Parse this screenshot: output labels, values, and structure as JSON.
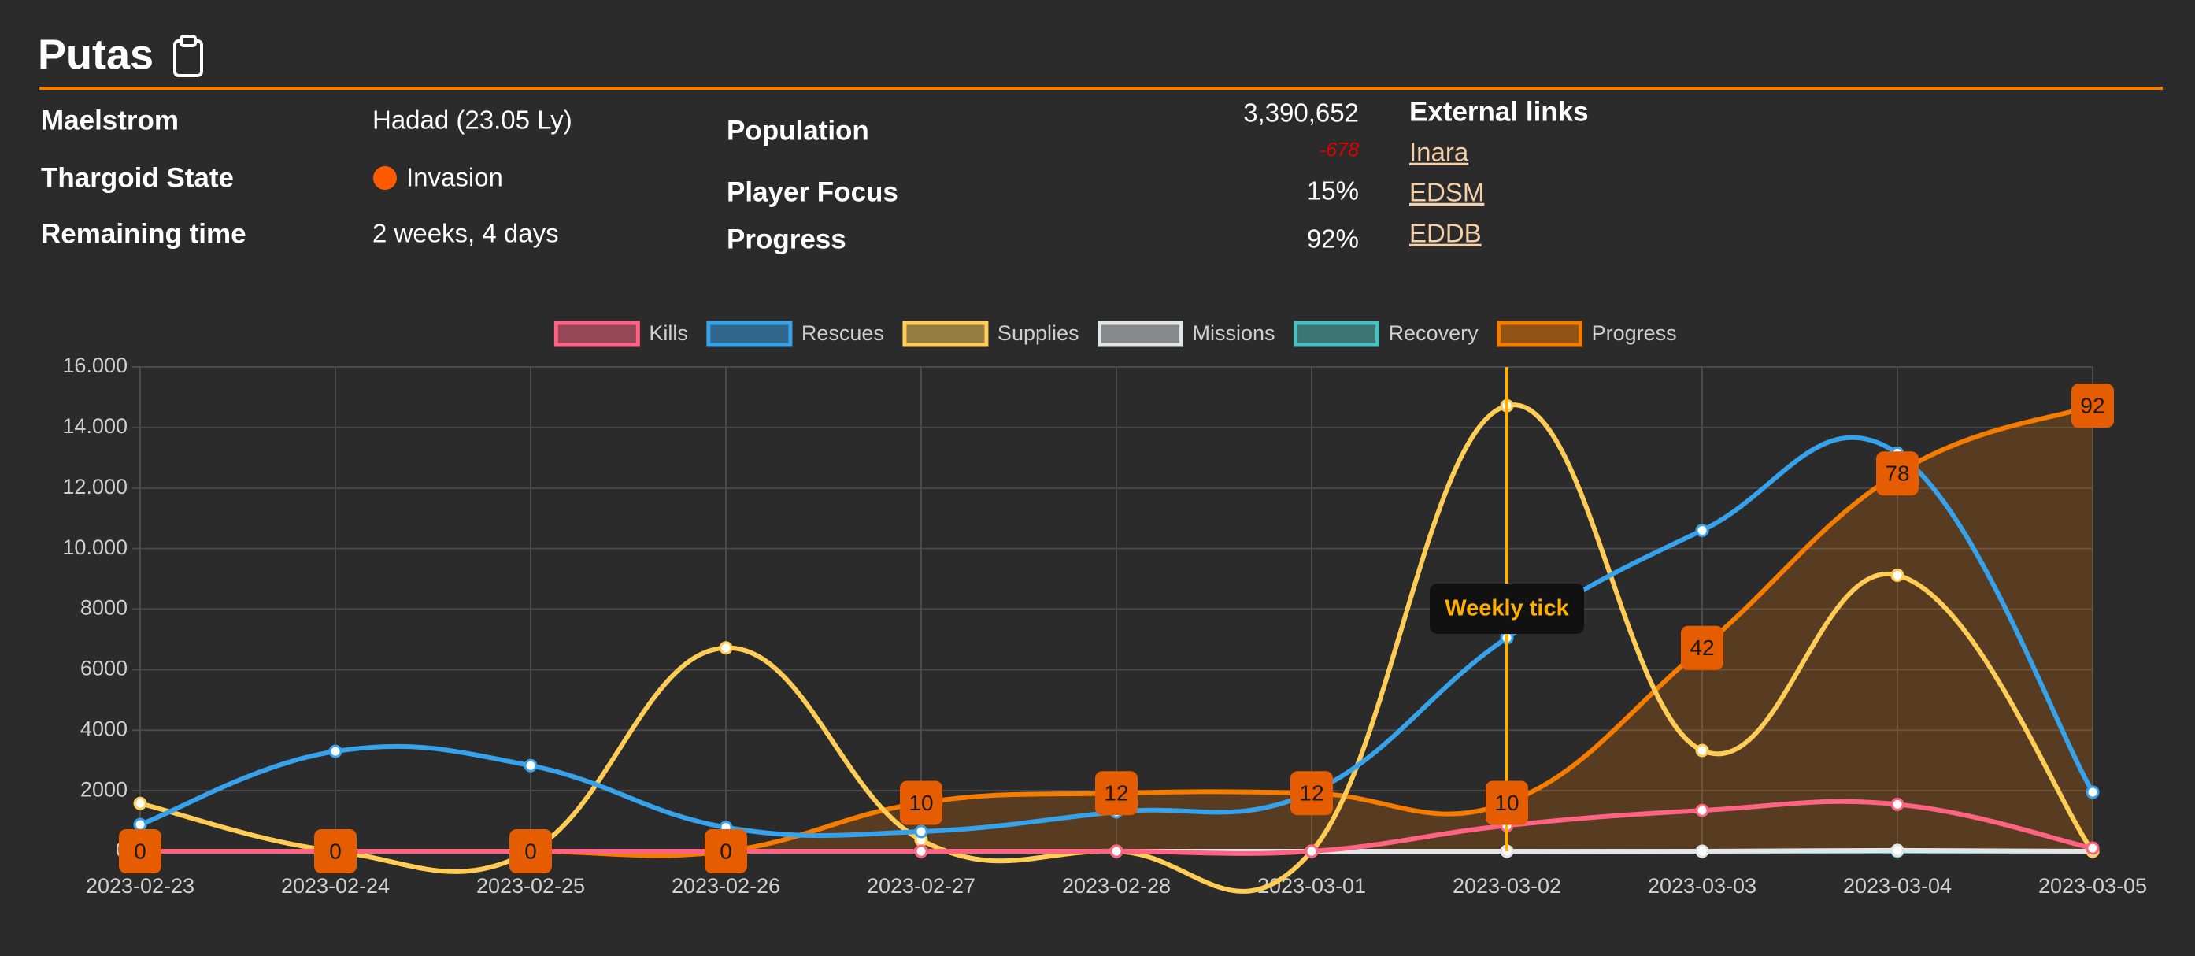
{
  "header": {
    "title": "Putas",
    "fields": [
      {
        "label": "Maelstrom",
        "value": "Hadad (23.05 Ly)"
      },
      {
        "label": "Thargoid State",
        "value": "Invasion"
      },
      {
        "label": "Remaining time",
        "value": "2 weeks, 4 days"
      }
    ],
    "stats": [
      {
        "label": "Population",
        "value": "3,390,652",
        "change": "-678"
      },
      {
        "label": "Player Focus",
        "value": "15%"
      },
      {
        "label": "Progress",
        "value": "92%"
      }
    ],
    "external_links": {
      "title": "External links",
      "links": [
        "Inara",
        "EDSM",
        "EDDB"
      ]
    }
  },
  "chart_data": {
    "type": "line",
    "categories": [
      "2023-02-23",
      "2023-02-24",
      "2023-02-25",
      "2023-02-26",
      "2023-02-27",
      "2023-02-28",
      "2023-03-01",
      "2023-03-02",
      "2023-03-03",
      "2023-03-04",
      "2023-03-05"
    ],
    "series": [
      {
        "name": "Kills",
        "color": "#ff6384",
        "values": [
          0,
          0,
          0,
          0,
          0,
          0,
          0,
          850,
          1350,
          1550,
          100
        ]
      },
      {
        "name": "Rescues",
        "color": "#36a2eb",
        "values": [
          880,
          3300,
          2830,
          790,
          650,
          1300,
          1950,
          7050,
          10600,
          13150,
          1950
        ]
      },
      {
        "name": "Supplies",
        "color": "#ffcd56",
        "values": [
          1580,
          0,
          0,
          6720,
          370,
          0,
          0,
          14720,
          3330,
          9120,
          0
        ]
      },
      {
        "name": "Missions",
        "color": "#e4e5e7",
        "values": [
          0,
          0,
          0,
          0,
          0,
          0,
          0,
          0,
          0,
          30,
          0
        ]
      },
      {
        "name": "Recovery",
        "color": "#4bc0c0",
        "values": [
          0,
          0,
          0,
          0,
          0,
          0,
          0,
          0,
          0,
          0,
          0
        ]
      },
      {
        "name": "Progress",
        "color": "#f57c00",
        "axis": "y2",
        "fill": true,
        "data_labels": true,
        "values": [
          0,
          0,
          0,
          0,
          10,
          12,
          12,
          10,
          42,
          78,
          92
        ]
      }
    ],
    "ylim": [
      0,
      16000
    ],
    "yticks": [
      0,
      2000,
      4000,
      6000,
      8000,
      {
        "value": 10000,
        "label": "10.000"
      },
      {
        "value": 12000,
        "label": "12.000"
      },
      {
        "value": 14000,
        "label": "14.000"
      },
      {
        "value": 16000,
        "label": "16.000"
      }
    ],
    "y2lim": [
      0,
      100
    ],
    "grid": true,
    "legend": "top",
    "annotation": {
      "x": "2023-03-02",
      "label": "Weekly tick"
    }
  }
}
